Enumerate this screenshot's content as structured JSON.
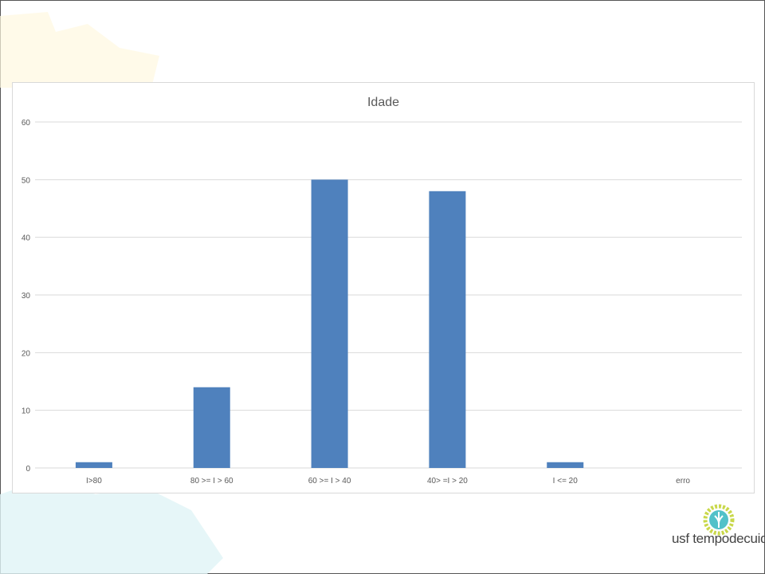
{
  "chart_data": {
    "type": "bar",
    "title": "Idade",
    "categories": [
      "I>80",
      "80 >= I > 60",
      "60 >= I > 40",
      "40> =I > 20",
      "I <= 20",
      "erro"
    ],
    "values": [
      1,
      14,
      50,
      48,
      1,
      0
    ],
    "ylim": [
      0,
      60
    ],
    "yticks": [
      0,
      10,
      20,
      30,
      40,
      50,
      60
    ],
    "grid": true,
    "legend": "none",
    "bar_color": "#4f81bd"
  },
  "logo": {
    "text": "usf tempodecuidar"
  }
}
